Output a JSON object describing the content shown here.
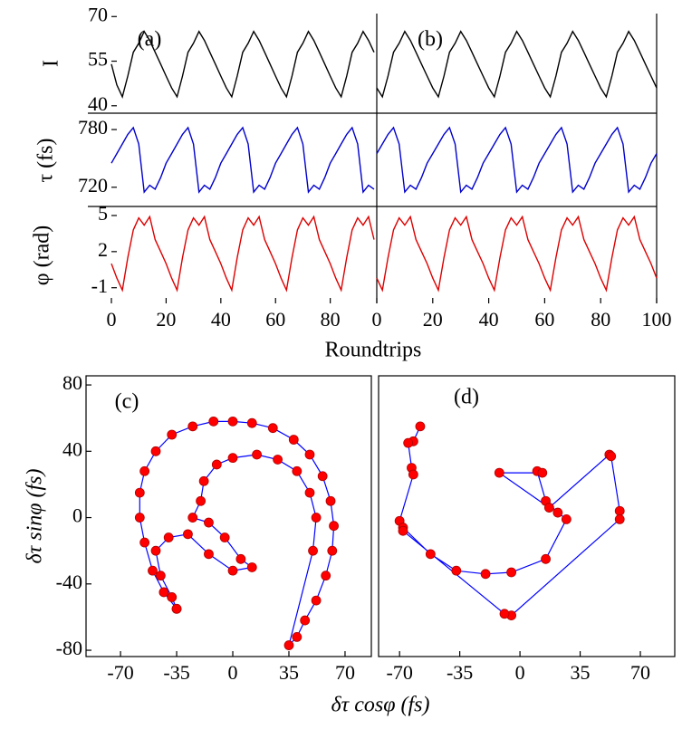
{
  "chart_data": [
    {
      "type": "line",
      "label": "(a)",
      "ylabel": "I",
      "color": "#000000",
      "x": [
        0,
        2,
        4,
        6,
        8,
        10,
        12,
        14,
        16,
        18,
        20,
        22,
        24,
        26,
        28,
        30,
        32,
        34,
        36,
        38,
        40,
        42,
        44,
        46,
        48,
        50,
        52,
        54,
        56,
        58,
        60,
        62,
        64,
        66,
        68,
        70,
        72,
        74,
        76,
        78,
        80,
        82,
        84,
        86,
        88,
        90,
        92,
        94,
        96
      ],
      "values": [
        54,
        47,
        43,
        50,
        58,
        61,
        65,
        62,
        58,
        54,
        50,
        46,
        43,
        50,
        58,
        61,
        65,
        62,
        58,
        54,
        50,
        46,
        43,
        50,
        58,
        61,
        65,
        62,
        58,
        54,
        50,
        46,
        43,
        50,
        58,
        61,
        65,
        62,
        58,
        54,
        50,
        46,
        43,
        50,
        58,
        61,
        65,
        62,
        58
      ],
      "xlim": [
        0,
        97
      ],
      "ylim": [
        37.5,
        71
      ],
      "yticks": [
        40,
        55,
        70
      ]
    },
    {
      "type": "line",
      "ylabel": "τ (fs)",
      "color": "#0000cc",
      "x": [
        0,
        2,
        4,
        6,
        8,
        10,
        12,
        14,
        16,
        18,
        20,
        22,
        24,
        26,
        28,
        30,
        32,
        34,
        36,
        38,
        40,
        42,
        44,
        46,
        48,
        50,
        52,
        54,
        56,
        58,
        60,
        62,
        64,
        66,
        68,
        70,
        72,
        74,
        76,
        78,
        80,
        82,
        84,
        86,
        88,
        90,
        92,
        94,
        96
      ],
      "values": [
        745,
        755,
        765,
        775,
        782,
        765,
        715,
        722,
        718,
        730,
        745,
        755,
        765,
        775,
        782,
        765,
        715,
        722,
        718,
        730,
        745,
        755,
        765,
        775,
        782,
        765,
        715,
        722,
        718,
        730,
        745,
        755,
        765,
        775,
        782,
        765,
        715,
        722,
        718,
        730,
        745,
        755,
        765,
        775,
        782,
        765,
        715,
        722,
        718
      ],
      "xlim": [
        0,
        97
      ],
      "ylim": [
        700,
        797
      ],
      "yticks": [
        720,
        780
      ]
    },
    {
      "type": "line",
      "ylabel": "φ (rad)",
      "xlabel": "Roundtrips",
      "color": "#dd0000",
      "x": [
        0,
        2,
        4,
        6,
        8,
        10,
        12,
        14,
        16,
        18,
        20,
        22,
        24,
        26,
        28,
        30,
        32,
        34,
        36,
        38,
        40,
        42,
        44,
        46,
        48,
        50,
        52,
        54,
        56,
        58,
        60,
        62,
        64,
        66,
        68,
        70,
        72,
        74,
        76,
        78,
        80,
        82,
        84,
        86,
        88,
        90,
        92,
        94,
        96
      ],
      "values": [
        1.0,
        -0.2,
        -1.2,
        1.5,
        3.8,
        4.8,
        4.2,
        4.9,
        3.0,
        2.0,
        1.0,
        -0.2,
        -1.2,
        1.5,
        3.8,
        4.8,
        4.2,
        4.9,
        3.0,
        2.0,
        1.0,
        -0.2,
        -1.2,
        1.5,
        3.8,
        4.8,
        4.2,
        4.9,
        3.0,
        2.0,
        1.0,
        -0.2,
        -1.2,
        1.5,
        3.8,
        4.8,
        4.2,
        4.9,
        3.0,
        2.0,
        1.0,
        -0.2,
        -1.2,
        1.5,
        3.8,
        4.8,
        4.2,
        4.9,
        3.0
      ],
      "xlim": [
        0,
        97
      ],
      "ylim": [
        -2.3,
        5.75
      ],
      "yticks": [
        -1,
        2,
        5
      ],
      "xticks": [
        0,
        20,
        40,
        60,
        80
      ]
    },
    {
      "type": "line",
      "label": "(b)",
      "color": "#000000",
      "x": [
        0,
        2,
        4,
        6,
        8,
        10,
        12,
        14,
        16,
        18,
        20,
        22,
        24,
        26,
        28,
        30,
        32,
        34,
        36,
        38,
        40,
        42,
        44,
        46,
        48,
        50,
        52,
        54,
        56,
        58,
        60,
        62,
        64,
        66,
        68,
        70,
        72,
        74,
        76,
        78,
        80,
        82,
        84,
        86,
        88,
        90,
        92,
        94,
        96,
        98,
        100
      ],
      "values": [
        46,
        43,
        50,
        58,
        61,
        65,
        62,
        58,
        54,
        50,
        46,
        43,
        50,
        58,
        61,
        65,
        62,
        58,
        54,
        50,
        46,
        43,
        50,
        58,
        61,
        65,
        62,
        58,
        54,
        50,
        46,
        43,
        50,
        58,
        61,
        65,
        62,
        58,
        54,
        50,
        46,
        43,
        50,
        58,
        61,
        65,
        62,
        58,
        54,
        50,
        46
      ],
      "xlim": [
        0,
        100
      ],
      "ylim": [
        37.5,
        71
      ]
    },
    {
      "type": "line",
      "color": "#0000cc",
      "x": [
        0,
        2,
        4,
        6,
        8,
        10,
        12,
        14,
        16,
        18,
        20,
        22,
        24,
        26,
        28,
        30,
        32,
        34,
        36,
        38,
        40,
        42,
        44,
        46,
        48,
        50,
        52,
        54,
        56,
        58,
        60,
        62,
        64,
        66,
        68,
        70,
        72,
        74,
        76,
        78,
        80,
        82,
        84,
        86,
        88,
        90,
        92,
        94,
        96,
        98,
        100
      ],
      "values": [
        755,
        765,
        775,
        782,
        765,
        715,
        722,
        718,
        730,
        745,
        755,
        765,
        775,
        782,
        765,
        715,
        722,
        718,
        730,
        745,
        755,
        765,
        775,
        782,
        765,
        715,
        722,
        718,
        730,
        745,
        755,
        765,
        775,
        782,
        765,
        715,
        722,
        718,
        730,
        745,
        755,
        765,
        775,
        782,
        765,
        715,
        722,
        718,
        730,
        745,
        755
      ],
      "xlim": [
        0,
        100
      ],
      "ylim": [
        700,
        797
      ]
    },
    {
      "type": "line",
      "color": "#dd0000",
      "x": [
        0,
        2,
        4,
        6,
        8,
        10,
        12,
        14,
        16,
        18,
        20,
        22,
        24,
        26,
        28,
        30,
        32,
        34,
        36,
        38,
        40,
        42,
        44,
        46,
        48,
        50,
        52,
        54,
        56,
        58,
        60,
        62,
        64,
        66,
        68,
        70,
        72,
        74,
        76,
        78,
        80,
        82,
        84,
        86,
        88,
        90,
        92,
        94,
        96,
        98,
        100
      ],
      "values": [
        -0.2,
        -1.2,
        1.5,
        3.8,
        4.8,
        4.2,
        4.9,
        3.0,
        2.0,
        1.0,
        -0.2,
        -1.2,
        1.5,
        3.8,
        4.8,
        4.2,
        4.9,
        3.0,
        2.0,
        1.0,
        -0.2,
        -1.2,
        1.5,
        3.8,
        4.8,
        4.2,
        4.9,
        3.0,
        2.0,
        1.0,
        -0.2,
        -1.2,
        1.5,
        3.8,
        4.8,
        4.2,
        4.9,
        3.0,
        2.0,
        1.0,
        -0.2,
        -1.2,
        1.5,
        3.8,
        4.8,
        4.2,
        4.9,
        3.0,
        2.0,
        1.0,
        -0.2
      ],
      "xlim": [
        0,
        100
      ],
      "ylim": [
        -2.3,
        5.75
      ],
      "xticks": [
        0,
        20,
        40,
        60,
        80,
        100
      ]
    },
    {
      "type": "scatter",
      "label": "(c)",
      "xlabel": "δτ cosφ (fs)",
      "ylabel": "δτ sinφ (fs)",
      "color": "#ff0000",
      "line_color": "#0000ff",
      "x": [
        -35,
        -43,
        -50,
        -55,
        -58,
        -58,
        -55,
        -48,
        -38,
        -25,
        -12,
        0,
        12,
        25,
        38,
        48,
        56,
        61,
        63,
        62,
        58,
        52,
        45,
        40,
        35,
        50,
        52,
        48,
        40,
        28,
        15,
        0,
        -10,
        -18,
        -20,
        -25,
        -15,
        -5,
        5,
        12,
        0,
        -15,
        -28,
        -40,
        -48,
        -45,
        -38,
        -35
      ],
      "values": [
        -55,
        -45,
        -32,
        -15,
        0,
        15,
        28,
        40,
        50,
        55,
        58,
        58,
        57,
        54,
        47,
        38,
        25,
        10,
        -5,
        -20,
        -35,
        -50,
        -62,
        -72,
        -77,
        -20,
        0,
        15,
        28,
        35,
        38,
        36,
        32,
        22,
        10,
        0,
        -3,
        -12,
        -25,
        -30,
        -32,
        -22,
        -10,
        -12,
        -20,
        -35,
        -48,
        -55
      ],
      "xlim": [
        -91.5,
        86.4
      ],
      "ylim": [
        -83.8,
        85.5
      ],
      "xticks": [
        -70,
        -35,
        0,
        35,
        70
      ],
      "yticks": [
        -80,
        -40,
        0,
        40,
        80
      ]
    },
    {
      "type": "scatter",
      "label": "(d)",
      "color": "#ff0000",
      "line_color": "#0000ff",
      "x": [
        -58,
        -62,
        -65,
        -63,
        -62,
        -70,
        -68,
        -52,
        -37,
        -20,
        -5,
        15,
        27,
        22,
        15,
        10,
        13,
        -12,
        17,
        52,
        53,
        58,
        58,
        -5,
        -9,
        -68
      ],
      "values": [
        55,
        46,
        45,
        30,
        26,
        -2,
        -6,
        -22,
        -32,
        -34,
        -33,
        -25,
        -1,
        3,
        10,
        28,
        27,
        27,
        6,
        38,
        37,
        4,
        -1,
        -59,
        -58,
        -8
      ],
      "xlim": [
        -82.2,
        90.0
      ],
      "ylim": [
        -83.8,
        85.5
      ],
      "xticks": [
        -70,
        -35,
        0,
        35,
        70
      ]
    }
  ]
}
